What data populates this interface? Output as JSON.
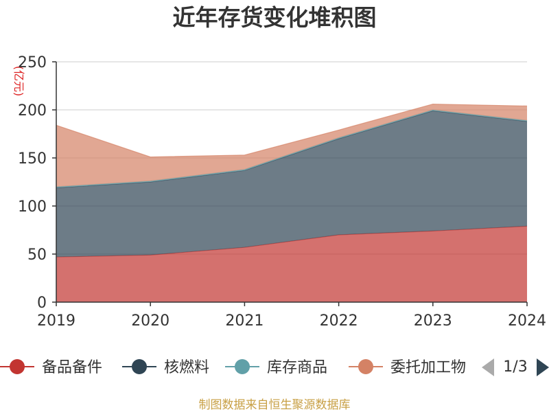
{
  "chart_data": {
    "type": "area",
    "stacked": true,
    "title": "近年存货变化堆积图",
    "unit_label": "(亿元)",
    "categories": [
      "2019",
      "2020",
      "2021",
      "2022",
      "2023",
      "2024"
    ],
    "y_ticks": [
      "0",
      "50",
      "100",
      "150",
      "200",
      "250"
    ],
    "ylim": [
      0,
      250
    ],
    "grid": true,
    "series": [
      {
        "name": "备品备件",
        "color": "#c23531",
        "values": [
          47,
          49,
          57,
          70,
          74,
          79
        ]
      },
      {
        "name": "核燃料",
        "color": "#2f4554",
        "values": [
          72,
          76,
          80,
          100,
          125,
          109
        ]
      },
      {
        "name": "库存商品",
        "color": "#61a0a8",
        "values": [
          1,
          1,
          1,
          1,
          1,
          1
        ]
      },
      {
        "name": "委托加工物资",
        "color": "#d48265",
        "values": [
          64,
          25,
          15,
          8,
          6,
          15
        ]
      }
    ],
    "legend": {
      "position": "bottom",
      "visible_items": [
        "备品备件",
        "核燃料",
        "库存商品",
        "委托加工物"
      ],
      "page": "1/3"
    }
  },
  "footer": {
    "source": "制图数据来自恒生聚源数据库"
  }
}
